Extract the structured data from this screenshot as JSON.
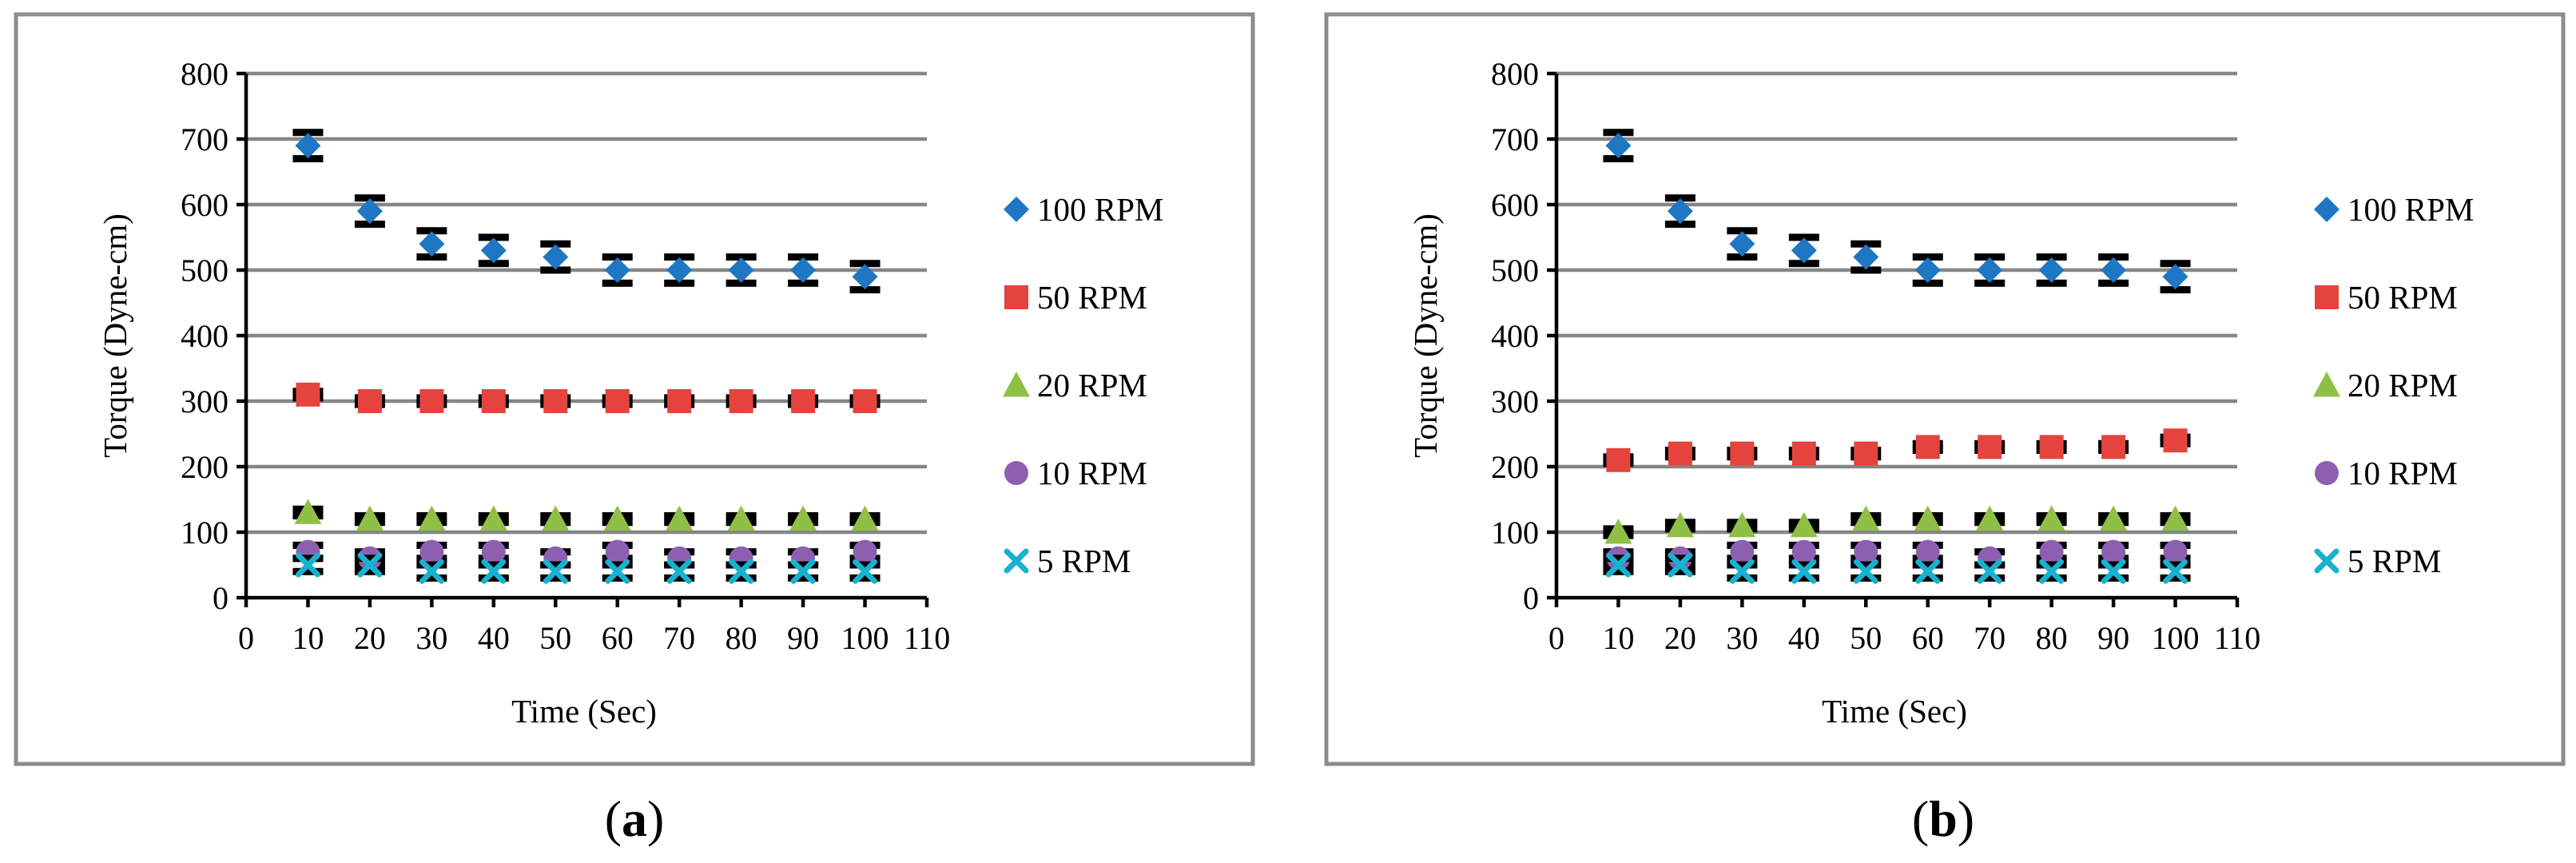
{
  "figure": {
    "panels": [
      {
        "caption_open": "(",
        "caption_letter": "a",
        "caption_close": ")"
      },
      {
        "caption_open": "(",
        "caption_letter": "b",
        "caption_close": ")"
      }
    ]
  },
  "chart_data": [
    {
      "type": "scatter",
      "title": "",
      "xlabel": "Time (Sec)",
      "ylabel": "Torque (Dyne-cm)",
      "xlim": [
        0,
        110
      ],
      "ylim": [
        0,
        800
      ],
      "xticks": [
        0,
        10,
        20,
        30,
        40,
        50,
        60,
        70,
        80,
        90,
        100,
        110
      ],
      "yticks": [
        0,
        100,
        200,
        300,
        400,
        500,
        600,
        700,
        800
      ],
      "grid": "horizontal",
      "legend_position": "right",
      "x": [
        10,
        20,
        30,
        40,
        50,
        60,
        70,
        80,
        90,
        100
      ],
      "series": [
        {
          "name": "100 RPM",
          "marker": "diamond",
          "color": "#1f77c4",
          "values": [
            690,
            590,
            540,
            530,
            520,
            500,
            500,
            500,
            500,
            490
          ],
          "error": 20
        },
        {
          "name": "50 RPM",
          "marker": "square",
          "color": "#e5443e",
          "values": [
            310,
            300,
            300,
            300,
            300,
            300,
            300,
            300,
            300,
            300
          ],
          "error": 5
        },
        {
          "name": "20 RPM",
          "marker": "triangle",
          "color": "#8fc045",
          "values": [
            130,
            120,
            120,
            120,
            120,
            120,
            120,
            120,
            120,
            120
          ],
          "error": 5
        },
        {
          "name": "10 RPM",
          "marker": "circle",
          "color": "#8d5fb1",
          "values": [
            70,
            60,
            70,
            70,
            60,
            70,
            60,
            60,
            60,
            70
          ],
          "error": 10
        },
        {
          "name": "5 RPM",
          "marker": "x",
          "color": "#19b1d0",
          "values": [
            50,
            50,
            40,
            40,
            40,
            40,
            40,
            40,
            40,
            40
          ],
          "error": 10
        }
      ]
    },
    {
      "type": "scatter",
      "title": "",
      "xlabel": "Time (Sec)",
      "ylabel": "Torque (Dyne-cm)",
      "xlim": [
        0,
        110
      ],
      "ylim": [
        0,
        800
      ],
      "xticks": [
        0,
        10,
        20,
        30,
        40,
        50,
        60,
        70,
        80,
        90,
        100,
        110
      ],
      "yticks": [
        0,
        100,
        200,
        300,
        400,
        500,
        600,
        700,
        800
      ],
      "grid": "horizontal",
      "legend_position": "right",
      "x": [
        10,
        20,
        30,
        40,
        50,
        60,
        70,
        80,
        90,
        100
      ],
      "series": [
        {
          "name": "100 RPM",
          "marker": "diamond",
          "color": "#1f77c4",
          "values": [
            690,
            590,
            540,
            530,
            520,
            500,
            500,
            500,
            500,
            490
          ],
          "error": 20
        },
        {
          "name": "50 RPM",
          "marker": "square",
          "color": "#e5443e",
          "values": [
            210,
            220,
            220,
            220,
            220,
            230,
            230,
            230,
            230,
            240
          ],
          "error": 5
        },
        {
          "name": "20 RPM",
          "marker": "triangle",
          "color": "#8fc045",
          "values": [
            100,
            110,
            110,
            110,
            120,
            120,
            120,
            120,
            120,
            120
          ],
          "error": 5
        },
        {
          "name": "10 RPM",
          "marker": "circle",
          "color": "#8d5fb1",
          "values": [
            60,
            60,
            70,
            70,
            70,
            70,
            60,
            70,
            70,
            70
          ],
          "error": 10
        },
        {
          "name": "5 RPM",
          "marker": "x",
          "color": "#19b1d0",
          "values": [
            50,
            50,
            40,
            40,
            40,
            40,
            40,
            40,
            40,
            40
          ],
          "error": 10
        }
      ]
    }
  ]
}
